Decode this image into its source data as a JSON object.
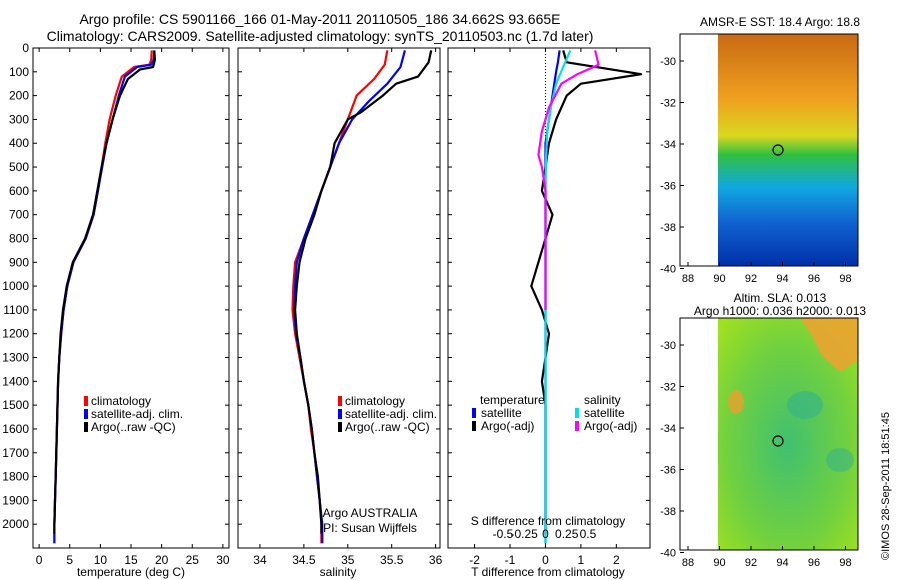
{
  "header": {
    "title_line1": "Argo profile: CS 5901166_166 01-May-2011 20110505_186 34.662S 93.665E",
    "title_line2": "Climatology: CARS2009. Satellite-adjusted climatology: synTS_20110503.nc (1.7d later)"
  },
  "colors": {
    "climatology": "#ff0000",
    "satellite": "#0000ff",
    "argo": "#000000",
    "salinity_satellite": "#00e0e8",
    "salinity_argo": "#ff00ff"
  },
  "panels": {
    "temperature": {
      "xlabel": "temperature (deg C)",
      "legend": [
        "climatology",
        "satellite-adj. clim.",
        "Argo(..raw -QC)"
      ]
    },
    "salinity": {
      "xlabel": "salinity",
      "legend": [
        "climatology",
        "satellite-adj. clim.",
        "Argo(..raw -QC)"
      ],
      "note_line1": "Argo AUSTRALIA",
      "note_line2": "PI: Susan Wijffels"
    },
    "difference": {
      "xlabel": "T difference from climatology",
      "top_label": "S difference from climatology",
      "top_ticks": [
        "-0.5",
        "-0.25",
        "0",
        "0.25",
        "0.5"
      ],
      "legend_temp_title": "temperature",
      "legend_sal_title": "salinity",
      "legend_temp": [
        "satellite",
        "Argo(-adj)"
      ],
      "legend_sal": [
        "satellite",
        "Argo(-adj)"
      ]
    }
  },
  "maps": {
    "sst": {
      "title": "AMSR-E SST: 18.4  Argo: 18.8"
    },
    "sla": {
      "title_line1": "Altim. SLA: 0.013",
      "title_line2": "Argo h1000: 0.036 h2000: 0.013"
    },
    "xticks": [
      "88",
      "90",
      "92",
      "94",
      "96",
      "98"
    ],
    "yticks": [
      "-30",
      "-32",
      "-34",
      "-36",
      "-38",
      "-40"
    ]
  },
  "signature": "©IMOS 28-Sep-2011 18:51:45",
  "chart_data": [
    {
      "type": "line",
      "name": "temperature",
      "xlabel": "temperature (deg C)",
      "ylabel": "",
      "xlim": [
        -1,
        31
      ],
      "ylim": [
        2100,
        0
      ],
      "xticks": [
        0,
        5,
        10,
        15,
        20,
        25,
        30
      ],
      "yticks": [
        0,
        100,
        200,
        300,
        400,
        500,
        600,
        700,
        800,
        900,
        1000,
        1100,
        1200,
        1300,
        1400,
        1500,
        1600,
        1700,
        1800,
        1900,
        2000
      ],
      "series": [
        {
          "name": "climatology",
          "color_key": "climatology",
          "points": [
            [
              18.4,
              10
            ],
            [
              18.3,
              50
            ],
            [
              18.0,
              70
            ],
            [
              15.5,
              80
            ],
            [
              13.5,
              120
            ],
            [
              12.5,
              200
            ],
            [
              11.5,
              300
            ],
            [
              10.8,
              400
            ],
            [
              10.2,
              500
            ],
            [
              9.6,
              600
            ],
            [
              8.9,
              700
            ],
            [
              7.6,
              800
            ],
            [
              5.6,
              900
            ],
            [
              4.6,
              1000
            ],
            [
              4.0,
              1100
            ],
            [
              3.6,
              1200
            ],
            [
              3.3,
              1300
            ],
            [
              3.1,
              1400
            ],
            [
              3.0,
              1500
            ],
            [
              2.9,
              1600
            ],
            [
              2.8,
              1700
            ],
            [
              2.7,
              1800
            ],
            [
              2.6,
              1900
            ],
            [
              2.5,
              2000
            ],
            [
              2.5,
              2080
            ]
          ]
        },
        {
          "name": "satellite-adj. clim.",
          "color_key": "satellite",
          "points": [
            [
              18.8,
              10
            ],
            [
              18.7,
              50
            ],
            [
              18.3,
              70
            ],
            [
              16.0,
              80
            ],
            [
              14.0,
              120
            ],
            [
              13.0,
              200
            ],
            [
              12.0,
              300
            ],
            [
              11.0,
              400
            ],
            [
              10.3,
              500
            ],
            [
              9.6,
              600
            ],
            [
              8.9,
              700
            ],
            [
              7.6,
              800
            ],
            [
              5.6,
              900
            ],
            [
              4.6,
              1000
            ],
            [
              4.0,
              1100
            ],
            [
              3.6,
              1200
            ],
            [
              3.3,
              1300
            ],
            [
              3.1,
              1400
            ],
            [
              3.0,
              1500
            ],
            [
              2.9,
              1600
            ],
            [
              2.8,
              1700
            ],
            [
              2.7,
              1800
            ],
            [
              2.6,
              1900
            ],
            [
              2.5,
              2000
            ],
            [
              2.5,
              2080
            ]
          ]
        },
        {
          "name": "Argo(..raw -QC)",
          "color_key": "argo",
          "points": [
            [
              18.8,
              10
            ],
            [
              18.9,
              50
            ],
            [
              18.6,
              80
            ],
            [
              16.5,
              90
            ],
            [
              14.5,
              130
            ],
            [
              13.2,
              200
            ],
            [
              12.0,
              300
            ],
            [
              11.0,
              400
            ],
            [
              10.2,
              500
            ],
            [
              9.5,
              600
            ],
            [
              8.8,
              700
            ],
            [
              7.5,
              800
            ],
            [
              5.5,
              900
            ],
            [
              4.5,
              1000
            ],
            [
              3.9,
              1100
            ],
            [
              3.5,
              1200
            ],
            [
              3.3,
              1300
            ],
            [
              3.1,
              1400
            ],
            [
              3.0,
              1500
            ],
            [
              2.9,
              1600
            ],
            [
              2.8,
              1700
            ],
            [
              2.7,
              1800
            ],
            [
              2.6,
              1900
            ],
            [
              2.5,
              2000
            ],
            [
              2.5,
              2040
            ]
          ]
        }
      ]
    },
    {
      "type": "line",
      "name": "salinity",
      "xlabel": "salinity",
      "ylabel": "",
      "xlim": [
        33.75,
        36.05
      ],
      "ylim": [
        2100,
        0
      ],
      "xticks": [
        34,
        34.5,
        35,
        35.5,
        36
      ],
      "series": [
        {
          "name": "climatology",
          "color_key": "climatology",
          "points": [
            [
              35.45,
              10
            ],
            [
              35.42,
              70
            ],
            [
              35.3,
              130
            ],
            [
              35.1,
              200
            ],
            [
              35.0,
              300
            ],
            [
              34.9,
              400
            ],
            [
              34.8,
              500
            ],
            [
              34.7,
              600
            ],
            [
              34.6,
              700
            ],
            [
              34.5,
              800
            ],
            [
              34.4,
              900
            ],
            [
              34.38,
              1000
            ],
            [
              34.37,
              1100
            ],
            [
              34.4,
              1200
            ],
            [
              34.45,
              1300
            ],
            [
              34.5,
              1400
            ],
            [
              34.55,
              1500
            ],
            [
              34.58,
              1600
            ],
            [
              34.62,
              1700
            ],
            [
              34.65,
              1800
            ],
            [
              34.68,
              1900
            ],
            [
              34.7,
              2000
            ],
            [
              34.7,
              2080
            ]
          ]
        },
        {
          "name": "satellite-adj. clim.",
          "color_key": "satellite",
          "points": [
            [
              35.65,
              10
            ],
            [
              35.6,
              80
            ],
            [
              35.45,
              150
            ],
            [
              35.25,
              220
            ],
            [
              35.05,
              300
            ],
            [
              34.9,
              400
            ],
            [
              34.8,
              500
            ],
            [
              34.7,
              600
            ],
            [
              34.6,
              700
            ],
            [
              34.5,
              800
            ],
            [
              34.42,
              900
            ],
            [
              34.4,
              1000
            ],
            [
              34.39,
              1100
            ],
            [
              34.41,
              1200
            ],
            [
              34.46,
              1300
            ],
            [
              34.5,
              1400
            ],
            [
              34.55,
              1500
            ],
            [
              34.59,
              1600
            ],
            [
              34.62,
              1700
            ],
            [
              34.65,
              1800
            ],
            [
              34.68,
              1900
            ],
            [
              34.71,
              2000
            ],
            [
              34.71,
              2080
            ]
          ]
        },
        {
          "name": "Argo(..raw -QC)",
          "color_key": "argo",
          "points": [
            [
              35.95,
              10
            ],
            [
              35.92,
              60
            ],
            [
              35.8,
              120
            ],
            [
              35.55,
              150
            ],
            [
              35.4,
              200
            ],
            [
              35.15,
              270
            ],
            [
              35.0,
              300
            ],
            [
              34.85,
              400
            ],
            [
              34.8,
              500
            ],
            [
              34.7,
              600
            ],
            [
              34.62,
              700
            ],
            [
              34.52,
              800
            ],
            [
              34.45,
              900
            ],
            [
              34.42,
              1000
            ],
            [
              34.4,
              1100
            ],
            [
              34.42,
              1200
            ],
            [
              34.46,
              1300
            ],
            [
              34.5,
              1400
            ],
            [
              34.55,
              1500
            ],
            [
              34.59,
              1600
            ],
            [
              34.62,
              1700
            ],
            [
              34.66,
              1800
            ],
            [
              34.68,
              1900
            ],
            [
              34.7,
              2000
            ],
            [
              34.7,
              2040
            ]
          ]
        }
      ]
    },
    {
      "type": "line",
      "name": "difference",
      "xlabel": "T difference from climatology",
      "xlim": [
        -2.75,
        2.95
      ],
      "ylim": [
        2100,
        0
      ],
      "xticks": [
        -2,
        -1,
        0,
        1,
        2
      ],
      "top_xticks": [
        -0.5,
        -0.25,
        0,
        0.25,
        0.5
      ],
      "series": [
        {
          "name": "temperature satellite",
          "color_key": "satellite",
          "points": [
            [
              0.4,
              10
            ],
            [
              0.35,
              60
            ],
            [
              0.3,
              100
            ],
            [
              0.2,
              200
            ],
            [
              0.1,
              300
            ],
            [
              0,
              400
            ],
            [
              0,
              500
            ],
            [
              0,
              600
            ],
            [
              0,
              700
            ],
            [
              0,
              800
            ],
            [
              0,
              1000
            ],
            [
              0,
              1200
            ],
            [
              0,
              1400
            ],
            [
              0,
              1600
            ],
            [
              0,
              1800
            ],
            [
              0,
              2000
            ],
            [
              0,
              2080
            ]
          ]
        },
        {
          "name": "temperature Argo(-adj)",
          "color_key": "argo",
          "points": [
            [
              0.5,
              10
            ],
            [
              0.6,
              60
            ],
            [
              2.7,
              110
            ],
            [
              1.0,
              150
            ],
            [
              0.6,
              200
            ],
            [
              0.3,
              300
            ],
            [
              0.1,
              400
            ],
            [
              0,
              500
            ],
            [
              -0.1,
              600
            ],
            [
              0.2,
              700
            ],
            [
              0,
              800
            ],
            [
              -0.2,
              900
            ],
            [
              -0.4,
              1000
            ],
            [
              -0.1,
              1100
            ],
            [
              0.1,
              1200
            ],
            [
              0,
              1300
            ],
            [
              -0.1,
              1400
            ],
            [
              0,
              1500
            ],
            [
              0,
              1600
            ],
            [
              0,
              1700
            ],
            [
              0,
              1800
            ],
            [
              0,
              1900
            ],
            [
              0,
              2000
            ],
            [
              0,
              2040
            ]
          ]
        },
        {
          "name": "salinity satellite",
          "color_key": "salinity_satellite",
          "points": [
            [
              0.7,
              10
            ],
            [
              0.5,
              80
            ],
            [
              0.3,
              150
            ],
            [
              0.15,
              250
            ],
            [
              0.05,
              350
            ],
            [
              0.02,
              450
            ],
            [
              0,
              550
            ],
            [
              0,
              700
            ],
            [
              0,
              900
            ],
            [
              0,
              1100
            ],
            [
              0,
              1300
            ],
            [
              0,
              1500
            ],
            [
              0,
              1700
            ],
            [
              0,
              1900
            ],
            [
              0,
              2080
            ]
          ]
        },
        {
          "name": "salinity Argo(-adj)",
          "color_key": "salinity_argo",
          "points": [
            [
              1.4,
              10
            ],
            [
              1.5,
              70
            ],
            [
              0.9,
              110
            ],
            [
              0.45,
              150
            ],
            [
              0.1,
              250
            ],
            [
              -0.1,
              350
            ],
            [
              -0.2,
              450
            ],
            [
              -0.1,
              500
            ],
            [
              0,
              600
            ],
            [
              0,
              700
            ],
            [
              0,
              800
            ],
            [
              0,
              900
            ],
            [
              0,
              1000
            ],
            [
              0,
              1100
            ]
          ]
        }
      ]
    }
  ]
}
